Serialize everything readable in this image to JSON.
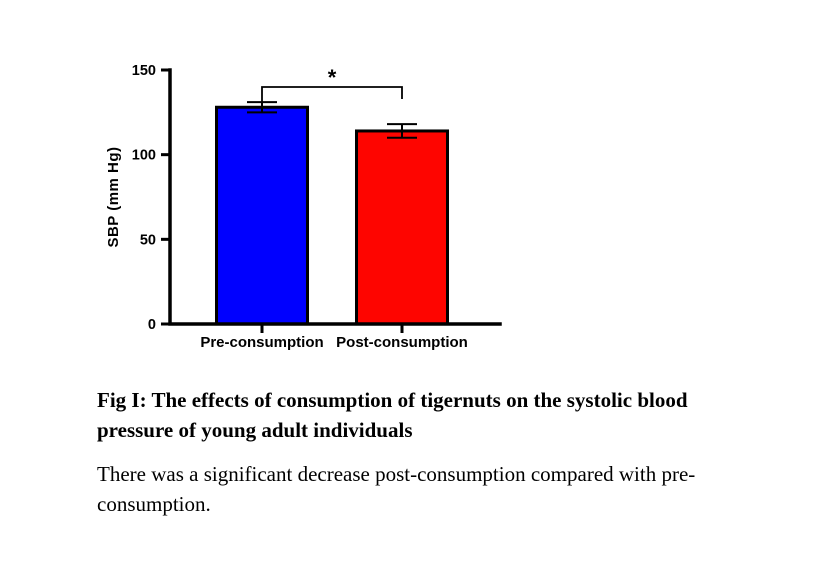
{
  "chart_data": {
    "type": "bar",
    "title": "",
    "xlabel": "",
    "ylabel": "SBP (mm Hg)",
    "ylim": [
      0,
      150
    ],
    "yticks": [
      0,
      50,
      100,
      150
    ],
    "categories": [
      "Pre-consumption",
      "Post-consumption"
    ],
    "values": [
      128,
      114
    ],
    "errors": [
      3,
      4
    ],
    "bar_colors": [
      "#0000ff",
      "#fe0500"
    ],
    "axis_color": "#000000",
    "grid": false,
    "legend": "none",
    "significance": {
      "label": "*",
      "between": [
        0,
        1
      ]
    }
  },
  "caption": {
    "title": "Fig I: The effects of consumption of tigernuts on the systolic blood pressure of young adult individuals",
    "body": "There was a significant decrease post-consumption compared with pre-consumption."
  }
}
